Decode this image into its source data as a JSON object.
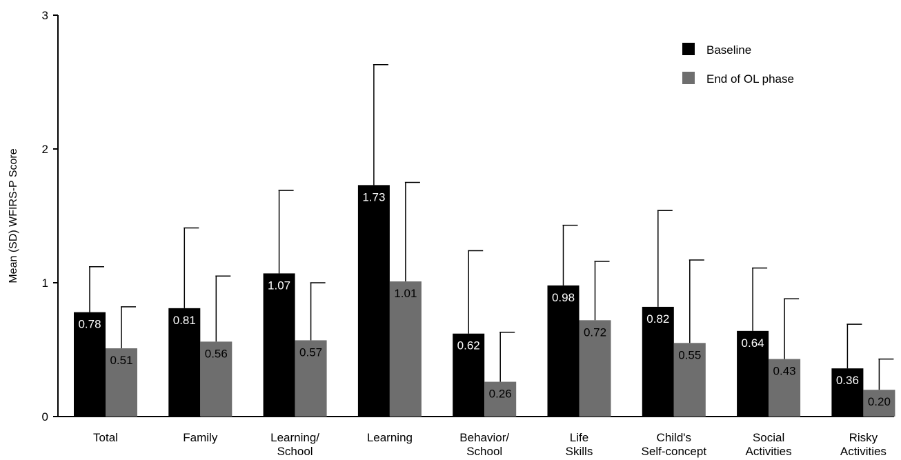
{
  "chart_data": {
    "type": "bar",
    "ylabel": "Mean (SD) WFIRS-P Score",
    "xlabel": "",
    "ylim": [
      0,
      3
    ],
    "yticks": [
      "0",
      "1",
      "2",
      "3"
    ],
    "grid": false,
    "legend_position": "top-right",
    "categories": [
      [
        "Total"
      ],
      [
        "Family"
      ],
      [
        "Learning/",
        "School"
      ],
      [
        "Learning"
      ],
      [
        "Behavior/",
        "School"
      ],
      [
        "Life",
        "Skills"
      ],
      [
        "Child's",
        "Self-concept"
      ],
      [
        "Social",
        "Activities"
      ],
      [
        "Risky",
        "Activities"
      ]
    ],
    "series": [
      {
        "name": "Baseline",
        "color": "#000000",
        "label_color": "#ffffff",
        "values": [
          0.78,
          0.81,
          1.07,
          1.73,
          0.62,
          0.98,
          0.82,
          0.64,
          0.36
        ],
        "value_labels": [
          "0.78",
          "0.81",
          "1.07",
          "1.73",
          "0.62",
          "0.98",
          "0.82",
          "0.64",
          "0.36"
        ],
        "error_top": [
          1.12,
          1.41,
          1.69,
          2.63,
          1.24,
          1.43,
          1.54,
          1.11,
          0.69
        ]
      },
      {
        "name": "End of OL phase",
        "color": "#6e6e6e",
        "label_color": "#000000",
        "values": [
          0.51,
          0.56,
          0.57,
          1.01,
          0.26,
          0.72,
          0.55,
          0.43,
          0.2
        ],
        "value_labels": [
          "0.51",
          "0.56",
          "0.57",
          "1.01",
          "0.26",
          "0.72",
          "0.55",
          "0.43",
          "0.20"
        ],
        "error_top": [
          0.82,
          1.05,
          1.0,
          1.75,
          0.63,
          1.16,
          1.17,
          0.88,
          0.43
        ]
      }
    ]
  }
}
